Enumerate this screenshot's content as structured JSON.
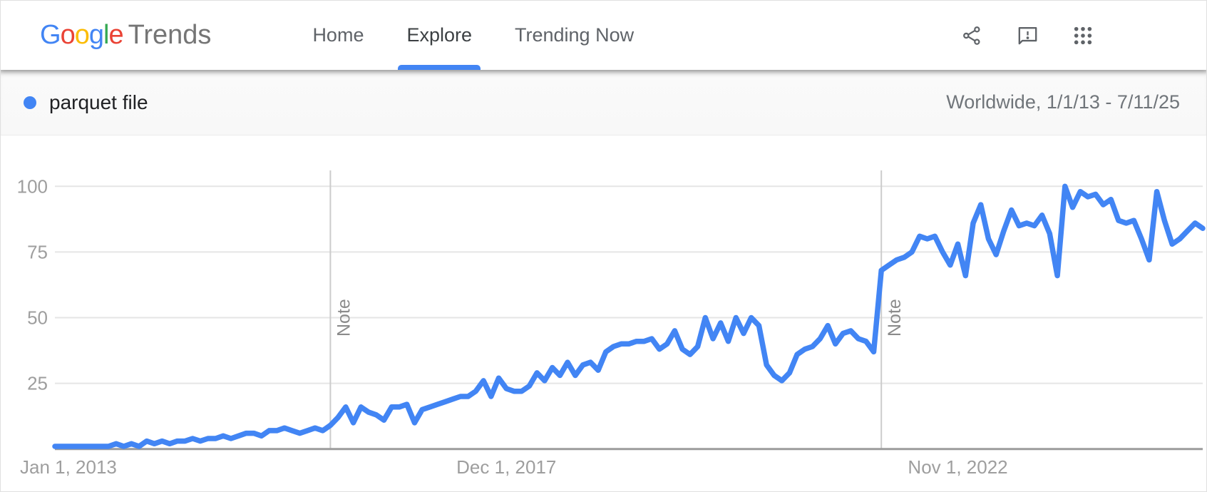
{
  "header": {
    "logo": {
      "letters": [
        {
          "ch": "G",
          "color": "#4285F4"
        },
        {
          "ch": "o",
          "color": "#EA4335"
        },
        {
          "ch": "o",
          "color": "#FBBC05"
        },
        {
          "ch": "g",
          "color": "#4285F4"
        },
        {
          "ch": "l",
          "color": "#34A853"
        },
        {
          "ch": "e",
          "color": "#EA4335"
        }
      ],
      "suffix": "Trends"
    },
    "nav": [
      {
        "label": "Home",
        "active": false
      },
      {
        "label": "Explore",
        "active": true
      },
      {
        "label": "Trending Now",
        "active": false
      }
    ],
    "accent_color": "#4285f4",
    "icons": [
      "share-icon",
      "feedback-icon",
      "apps-grid-icon"
    ],
    "icon_color": "#5f6368"
  },
  "term_bar": {
    "term": "parquet file",
    "dot_color": "#4285f4",
    "scope": "Worldwide, 1/1/13 - 7/11/25"
  },
  "chart_data": {
    "type": "line",
    "x_start_month": "2013-01",
    "x_end_month": "2025-07",
    "ylim": [
      0,
      100
    ],
    "y_ticks": [
      25,
      50,
      75,
      100
    ],
    "grid": true,
    "line_color": "#4285f4",
    "axis_label_color": "#9e9e9e",
    "x_tick_labels": [
      {
        "label": "Jan 1, 2013",
        "month_index": 0
      },
      {
        "label": "Dec 1, 2017",
        "month_index": 59
      },
      {
        "label": "Nov 1, 2022",
        "month_index": 118
      }
    ],
    "notes": [
      {
        "label": "Note",
        "month_index": 36
      },
      {
        "label": "Note",
        "month_index": 108
      }
    ],
    "series": [
      {
        "name": "parquet file",
        "values": [
          1,
          1,
          1,
          1,
          1,
          1,
          1,
          1,
          2,
          1,
          2,
          1,
          3,
          2,
          3,
          2,
          3,
          3,
          4,
          3,
          4,
          4,
          5,
          4,
          5,
          6,
          6,
          5,
          7,
          7,
          8,
          7,
          6,
          7,
          8,
          7,
          9,
          12,
          16,
          10,
          16,
          14,
          13,
          11,
          16,
          16,
          17,
          10,
          15,
          16,
          17,
          18,
          19,
          20,
          20,
          22,
          26,
          20,
          27,
          23,
          22,
          22,
          24,
          29,
          26,
          31,
          28,
          33,
          28,
          32,
          33,
          30,
          37,
          39,
          40,
          40,
          41,
          41,
          42,
          38,
          40,
          45,
          38,
          36,
          39,
          50,
          42,
          48,
          41,
          50,
          44,
          50,
          47,
          32,
          28,
          26,
          29,
          36,
          38,
          39,
          42,
          47,
          40,
          44,
          45,
          42,
          41,
          37,
          68,
          70,
          72,
          73,
          75,
          81,
          80,
          81,
          75,
          70,
          78,
          66,
          86,
          93,
          80,
          74,
          83,
          91,
          85,
          86,
          85,
          89,
          82,
          66,
          100,
          92,
          98,
          96,
          97,
          93,
          95,
          87,
          86,
          87,
          80,
          72,
          98,
          87,
          78,
          80,
          83,
          86,
          84
        ]
      }
    ]
  }
}
